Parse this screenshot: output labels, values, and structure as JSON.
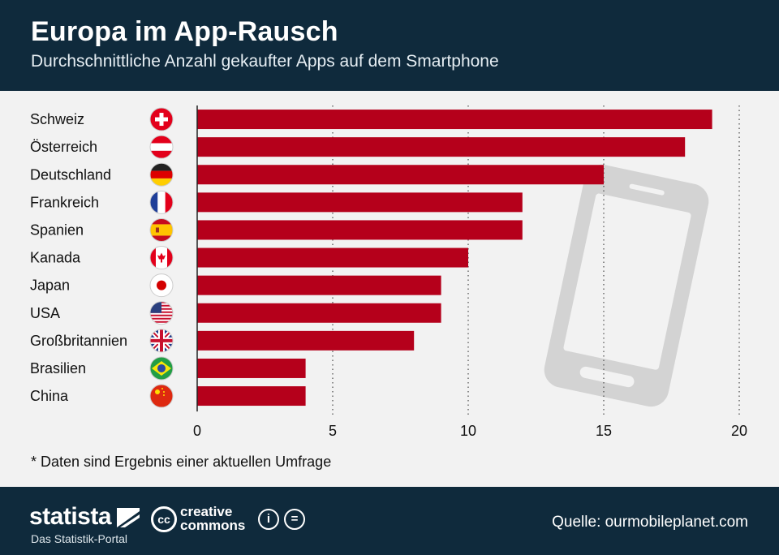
{
  "header": {
    "title": "Europa im App-Rausch",
    "subtitle": "Durchschnittliche Anzahl gekaufter Apps auf dem Smartphone"
  },
  "chart_data": {
    "type": "bar",
    "orientation": "horizontal",
    "categories": [
      "Schweiz",
      "Österreich",
      "Deutschland",
      "Frankreich",
      "Spanien",
      "Kanada",
      "Japan",
      "USA",
      "Großbritannien",
      "Brasilien",
      "China"
    ],
    "flags": [
      "switzerland",
      "austria",
      "germany",
      "france",
      "spain",
      "canada",
      "japan",
      "usa",
      "uk",
      "brazil",
      "china"
    ],
    "values": [
      19,
      18,
      15,
      12,
      12,
      10,
      9,
      9,
      8,
      4,
      4
    ],
    "xlim": [
      0,
      20
    ],
    "xticks": [
      "0",
      "5",
      "10",
      "15",
      "20"
    ],
    "grid": true,
    "bar_color": "#b5001b"
  },
  "footnote": "* Daten sind Ergebnis einer aktuellen Umfrage",
  "footer": {
    "brand": "statista",
    "tagline": "Das Statistik-Portal",
    "license_line1": "creative",
    "license_line2": "commons",
    "cc_badge": "cc",
    "attribution_icon": "i",
    "noderivs_icon": "=",
    "source": "Quelle: ourmobileplanet.com"
  },
  "colors": {
    "header_bg": "#0f2a3c",
    "bar": "#b5001b",
    "background": "#f2f2f2"
  }
}
